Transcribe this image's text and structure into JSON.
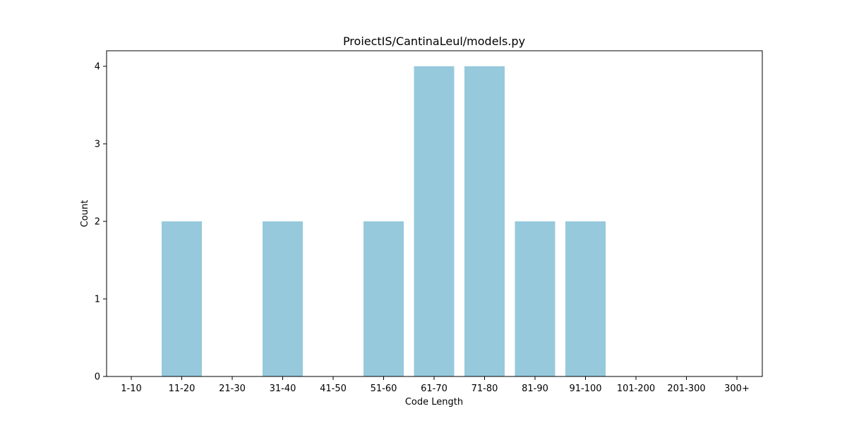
{
  "chart_data": {
    "type": "bar",
    "title": "ProiectIS/CantinaLeul/models.py",
    "xlabel": "Code Length",
    "ylabel": "Count",
    "categories": [
      "1-10",
      "11-20",
      "21-30",
      "31-40",
      "41-50",
      "51-60",
      "61-70",
      "71-80",
      "81-90",
      "91-100",
      "101-200",
      "201-300",
      "300+"
    ],
    "values": [
      0,
      2,
      0,
      2,
      0,
      2,
      4,
      4,
      2,
      2,
      0,
      0,
      0
    ],
    "ylim": [
      0,
      4.2
    ],
    "yticks": [
      0,
      1,
      2,
      3,
      4
    ],
    "bar_color": "#96c9dc",
    "grid": false,
    "legend": "none"
  }
}
